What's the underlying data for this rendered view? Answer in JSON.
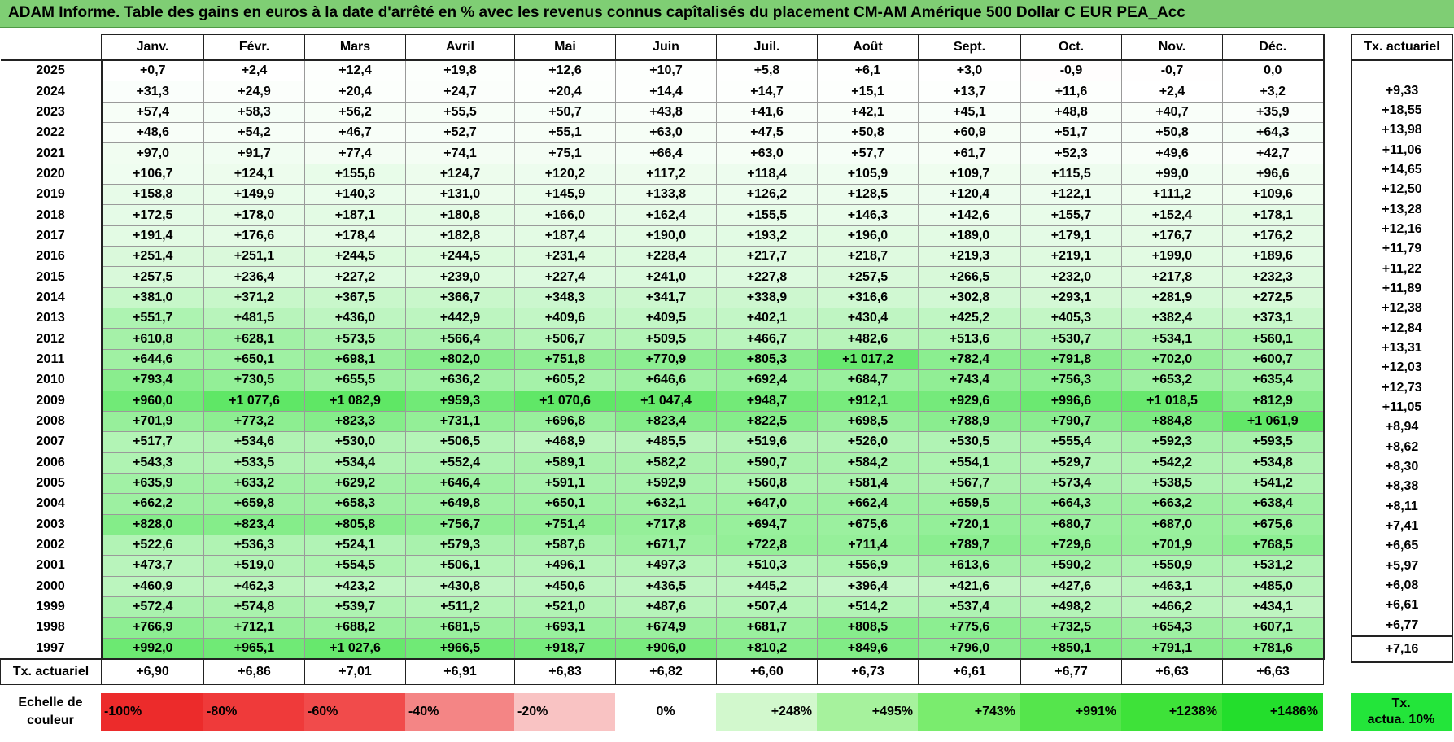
{
  "title": "ADAM Informe. Table des gains en euros à la date d'arrêté en % avec les revenus connus capîtalisés du placement CM-AM Amérique 500 Dollar C EUR PEA_Acc",
  "months": [
    "Janv.",
    "Févr.",
    "Mars",
    "Avril",
    "Mai",
    "Juin",
    "Juil.",
    "Août",
    "Sept.",
    "Oct.",
    "Nov.",
    "Déc."
  ],
  "side_header": "Tx. actuariel",
  "rows": [
    {
      "year": "2025",
      "values": [
        "+0,7",
        "+2,4",
        "+12,4",
        "+19,8",
        "+12,6",
        "+10,7",
        "+5,8",
        "+6,1",
        "+3,0",
        "-0,9",
        "-0,7",
        "0,0"
      ],
      "rate": ""
    },
    {
      "year": "2024",
      "values": [
        "+31,3",
        "+24,9",
        "+20,4",
        "+24,7",
        "+20,4",
        "+14,4",
        "+14,7",
        "+15,1",
        "+13,7",
        "+11,6",
        "+2,4",
        "+3,2"
      ],
      "rate": "+9,33"
    },
    {
      "year": "2023",
      "values": [
        "+57,4",
        "+58,3",
        "+56,2",
        "+55,5",
        "+50,7",
        "+43,8",
        "+41,6",
        "+42,1",
        "+45,1",
        "+48,8",
        "+40,7",
        "+35,9"
      ],
      "rate": "+18,55"
    },
    {
      "year": "2022",
      "values": [
        "+48,6",
        "+54,2",
        "+46,7",
        "+52,7",
        "+55,1",
        "+63,0",
        "+47,5",
        "+50,8",
        "+60,9",
        "+51,7",
        "+50,8",
        "+64,3"
      ],
      "rate": "+13,98"
    },
    {
      "year": "2021",
      "values": [
        "+97,0",
        "+91,7",
        "+77,4",
        "+74,1",
        "+75,1",
        "+66,4",
        "+63,0",
        "+57,7",
        "+61,7",
        "+52,3",
        "+49,6",
        "+42,7"
      ],
      "rate": "+11,06"
    },
    {
      "year": "2020",
      "values": [
        "+106,7",
        "+124,1",
        "+155,6",
        "+124,7",
        "+120,2",
        "+117,2",
        "+118,4",
        "+105,9",
        "+109,7",
        "+115,5",
        "+99,0",
        "+96,6"
      ],
      "rate": "+14,65"
    },
    {
      "year": "2019",
      "values": [
        "+158,8",
        "+149,9",
        "+140,3",
        "+131,0",
        "+145,9",
        "+133,8",
        "+126,2",
        "+128,5",
        "+120,4",
        "+122,1",
        "+111,2",
        "+109,6"
      ],
      "rate": "+12,50"
    },
    {
      "year": "2018",
      "values": [
        "+172,5",
        "+178,0",
        "+187,1",
        "+180,8",
        "+166,0",
        "+162,4",
        "+155,5",
        "+146,3",
        "+142,6",
        "+155,7",
        "+152,4",
        "+178,1"
      ],
      "rate": "+13,28"
    },
    {
      "year": "2017",
      "values": [
        "+191,4",
        "+176,6",
        "+178,4",
        "+182,8",
        "+187,4",
        "+190,0",
        "+193,2",
        "+196,0",
        "+189,0",
        "+179,1",
        "+176,7",
        "+176,2"
      ],
      "rate": "+12,16"
    },
    {
      "year": "2016",
      "values": [
        "+251,4",
        "+251,1",
        "+244,5",
        "+244,5",
        "+231,4",
        "+228,4",
        "+217,7",
        "+218,7",
        "+219,3",
        "+219,1",
        "+199,0",
        "+189,6"
      ],
      "rate": "+11,79"
    },
    {
      "year": "2015",
      "values": [
        "+257,5",
        "+236,4",
        "+227,2",
        "+239,0",
        "+227,4",
        "+241,0",
        "+227,8",
        "+257,5",
        "+266,5",
        "+232,0",
        "+217,8",
        "+232,3"
      ],
      "rate": "+11,22"
    },
    {
      "year": "2014",
      "values": [
        "+381,0",
        "+371,2",
        "+367,5",
        "+366,7",
        "+348,3",
        "+341,7",
        "+338,9",
        "+316,6",
        "+302,8",
        "+293,1",
        "+281,9",
        "+272,5"
      ],
      "rate": "+11,89"
    },
    {
      "year": "2013",
      "values": [
        "+551,7",
        "+481,5",
        "+436,0",
        "+442,9",
        "+409,6",
        "+409,5",
        "+402,1",
        "+430,4",
        "+425,2",
        "+405,3",
        "+382,4",
        "+373,1"
      ],
      "rate": "+12,38"
    },
    {
      "year": "2012",
      "values": [
        "+610,8",
        "+628,1",
        "+573,5",
        "+566,4",
        "+506,7",
        "+509,5",
        "+466,7",
        "+482,6",
        "+513,6",
        "+530,7",
        "+534,1",
        "+560,1"
      ],
      "rate": "+12,84"
    },
    {
      "year": "2011",
      "values": [
        "+644,6",
        "+650,1",
        "+698,1",
        "+802,0",
        "+751,8",
        "+770,9",
        "+805,3",
        "+1 017,2",
        "+782,4",
        "+791,8",
        "+702,0",
        "+600,7"
      ],
      "rate": "+13,31"
    },
    {
      "year": "2010",
      "values": [
        "+793,4",
        "+730,5",
        "+655,5",
        "+636,2",
        "+605,2",
        "+646,6",
        "+692,4",
        "+684,7",
        "+743,4",
        "+756,3",
        "+653,2",
        "+635,4"
      ],
      "rate": "+12,03"
    },
    {
      "year": "2009",
      "values": [
        "+960,0",
        "+1 077,6",
        "+1 082,9",
        "+959,3",
        "+1 070,6",
        "+1 047,4",
        "+948,7",
        "+912,1",
        "+929,6",
        "+996,6",
        "+1 018,5",
        "+812,9"
      ],
      "rate": "+12,73"
    },
    {
      "year": "2008",
      "values": [
        "+701,9",
        "+773,2",
        "+823,3",
        "+731,1",
        "+696,8",
        "+823,4",
        "+822,5",
        "+698,5",
        "+788,9",
        "+790,7",
        "+884,8",
        "+1 061,9"
      ],
      "rate": "+11,05"
    },
    {
      "year": "2007",
      "values": [
        "+517,7",
        "+534,6",
        "+530,0",
        "+506,5",
        "+468,9",
        "+485,5",
        "+519,6",
        "+526,0",
        "+530,5",
        "+555,4",
        "+592,3",
        "+593,5"
      ],
      "rate": "+8,94"
    },
    {
      "year": "2006",
      "values": [
        "+543,3",
        "+533,5",
        "+534,4",
        "+552,4",
        "+589,1",
        "+582,2",
        "+590,7",
        "+584,2",
        "+554,1",
        "+529,7",
        "+542,2",
        "+534,8"
      ],
      "rate": "+8,62"
    },
    {
      "year": "2005",
      "values": [
        "+635,9",
        "+633,2",
        "+629,2",
        "+646,4",
        "+591,1",
        "+592,9",
        "+560,8",
        "+581,4",
        "+567,7",
        "+573,4",
        "+538,5",
        "+541,2"
      ],
      "rate": "+8,30"
    },
    {
      "year": "2004",
      "values": [
        "+662,2",
        "+659,8",
        "+658,3",
        "+649,8",
        "+650,1",
        "+632,1",
        "+647,0",
        "+662,4",
        "+659,5",
        "+664,3",
        "+663,2",
        "+638,4"
      ],
      "rate": "+8,38"
    },
    {
      "year": "2003",
      "values": [
        "+828,0",
        "+823,4",
        "+805,8",
        "+756,7",
        "+751,4",
        "+717,8",
        "+694,7",
        "+675,6",
        "+720,1",
        "+680,7",
        "+687,0",
        "+675,6"
      ],
      "rate": "+8,11"
    },
    {
      "year": "2002",
      "values": [
        "+522,6",
        "+536,3",
        "+524,1",
        "+579,3",
        "+587,6",
        "+671,7",
        "+722,8",
        "+711,4",
        "+789,7",
        "+729,6",
        "+701,9",
        "+768,5"
      ],
      "rate": "+7,41"
    },
    {
      "year": "2001",
      "values": [
        "+473,7",
        "+519,0",
        "+554,5",
        "+506,1",
        "+496,1",
        "+497,3",
        "+510,3",
        "+556,9",
        "+613,6",
        "+590,2",
        "+550,9",
        "+531,2"
      ],
      "rate": "+6,65"
    },
    {
      "year": "2000",
      "values": [
        "+460,9",
        "+462,3",
        "+423,2",
        "+430,8",
        "+450,6",
        "+436,5",
        "+445,2",
        "+396,4",
        "+421,6",
        "+427,6",
        "+463,1",
        "+485,0"
      ],
      "rate": "+5,97"
    },
    {
      "year": "1999",
      "values": [
        "+572,4",
        "+574,8",
        "+539,7",
        "+511,2",
        "+521,0",
        "+487,6",
        "+507,4",
        "+514,2",
        "+537,4",
        "+498,2",
        "+466,2",
        "+434,1"
      ],
      "rate": "+6,08"
    },
    {
      "year": "1998",
      "values": [
        "+766,9",
        "+712,1",
        "+688,2",
        "+681,5",
        "+693,1",
        "+674,9",
        "+681,7",
        "+808,5",
        "+775,6",
        "+732,5",
        "+654,3",
        "+607,1"
      ],
      "rate": "+6,61"
    },
    {
      "year": "1997",
      "values": [
        "+992,0",
        "+965,1",
        "+1 027,6",
        "+966,5",
        "+918,7",
        "+906,0",
        "+810,2",
        "+849,6",
        "+796,0",
        "+850,1",
        "+791,1",
        "+781,6"
      ],
      "rate": "+6,77"
    }
  ],
  "footer": {
    "label": "Tx. actuariel",
    "values": [
      "+6,90",
      "+6,86",
      "+7,01",
      "+6,91",
      "+6,83",
      "+6,82",
      "+6,60",
      "+6,73",
      "+6,61",
      "+6,77",
      "+6,63",
      "+6,63"
    ],
    "rate": "+7,16"
  },
  "legend": {
    "label_line1": "Echelle de",
    "label_line2": "couleur",
    "cells": [
      {
        "label": "-100%",
        "color": "#ec2b2b",
        "kind": "neg"
      },
      {
        "label": "-80%",
        "color": "#ef3a3a",
        "kind": "neg"
      },
      {
        "label": "-60%",
        "color": "#f14b4b",
        "kind": "neg"
      },
      {
        "label": "-40%",
        "color": "#f48585",
        "kind": "neg"
      },
      {
        "label": "-20%",
        "color": "#f9c3c3",
        "kind": "neg"
      },
      {
        "label": "0%",
        "color": "#ffffff",
        "kind": "zero"
      },
      {
        "label": "+248%",
        "color": "#d2f8cd",
        "kind": "pos"
      },
      {
        "label": "+495%",
        "color": "#a6f29d",
        "kind": "pos"
      },
      {
        "label": "+743%",
        "color": "#7aec6e",
        "kind": "pos"
      },
      {
        "label": "+991%",
        "color": "#55e54c",
        "kind": "pos"
      },
      {
        "label": "+1238%",
        "color": "#3ee239",
        "kind": "pos"
      },
      {
        "label": "+1486%",
        "color": "#23de2c",
        "kind": "pos"
      }
    ],
    "rate_line1": "Tx.",
    "rate_line2": "actua. 10%",
    "rate_color": "#23e53a"
  }
}
